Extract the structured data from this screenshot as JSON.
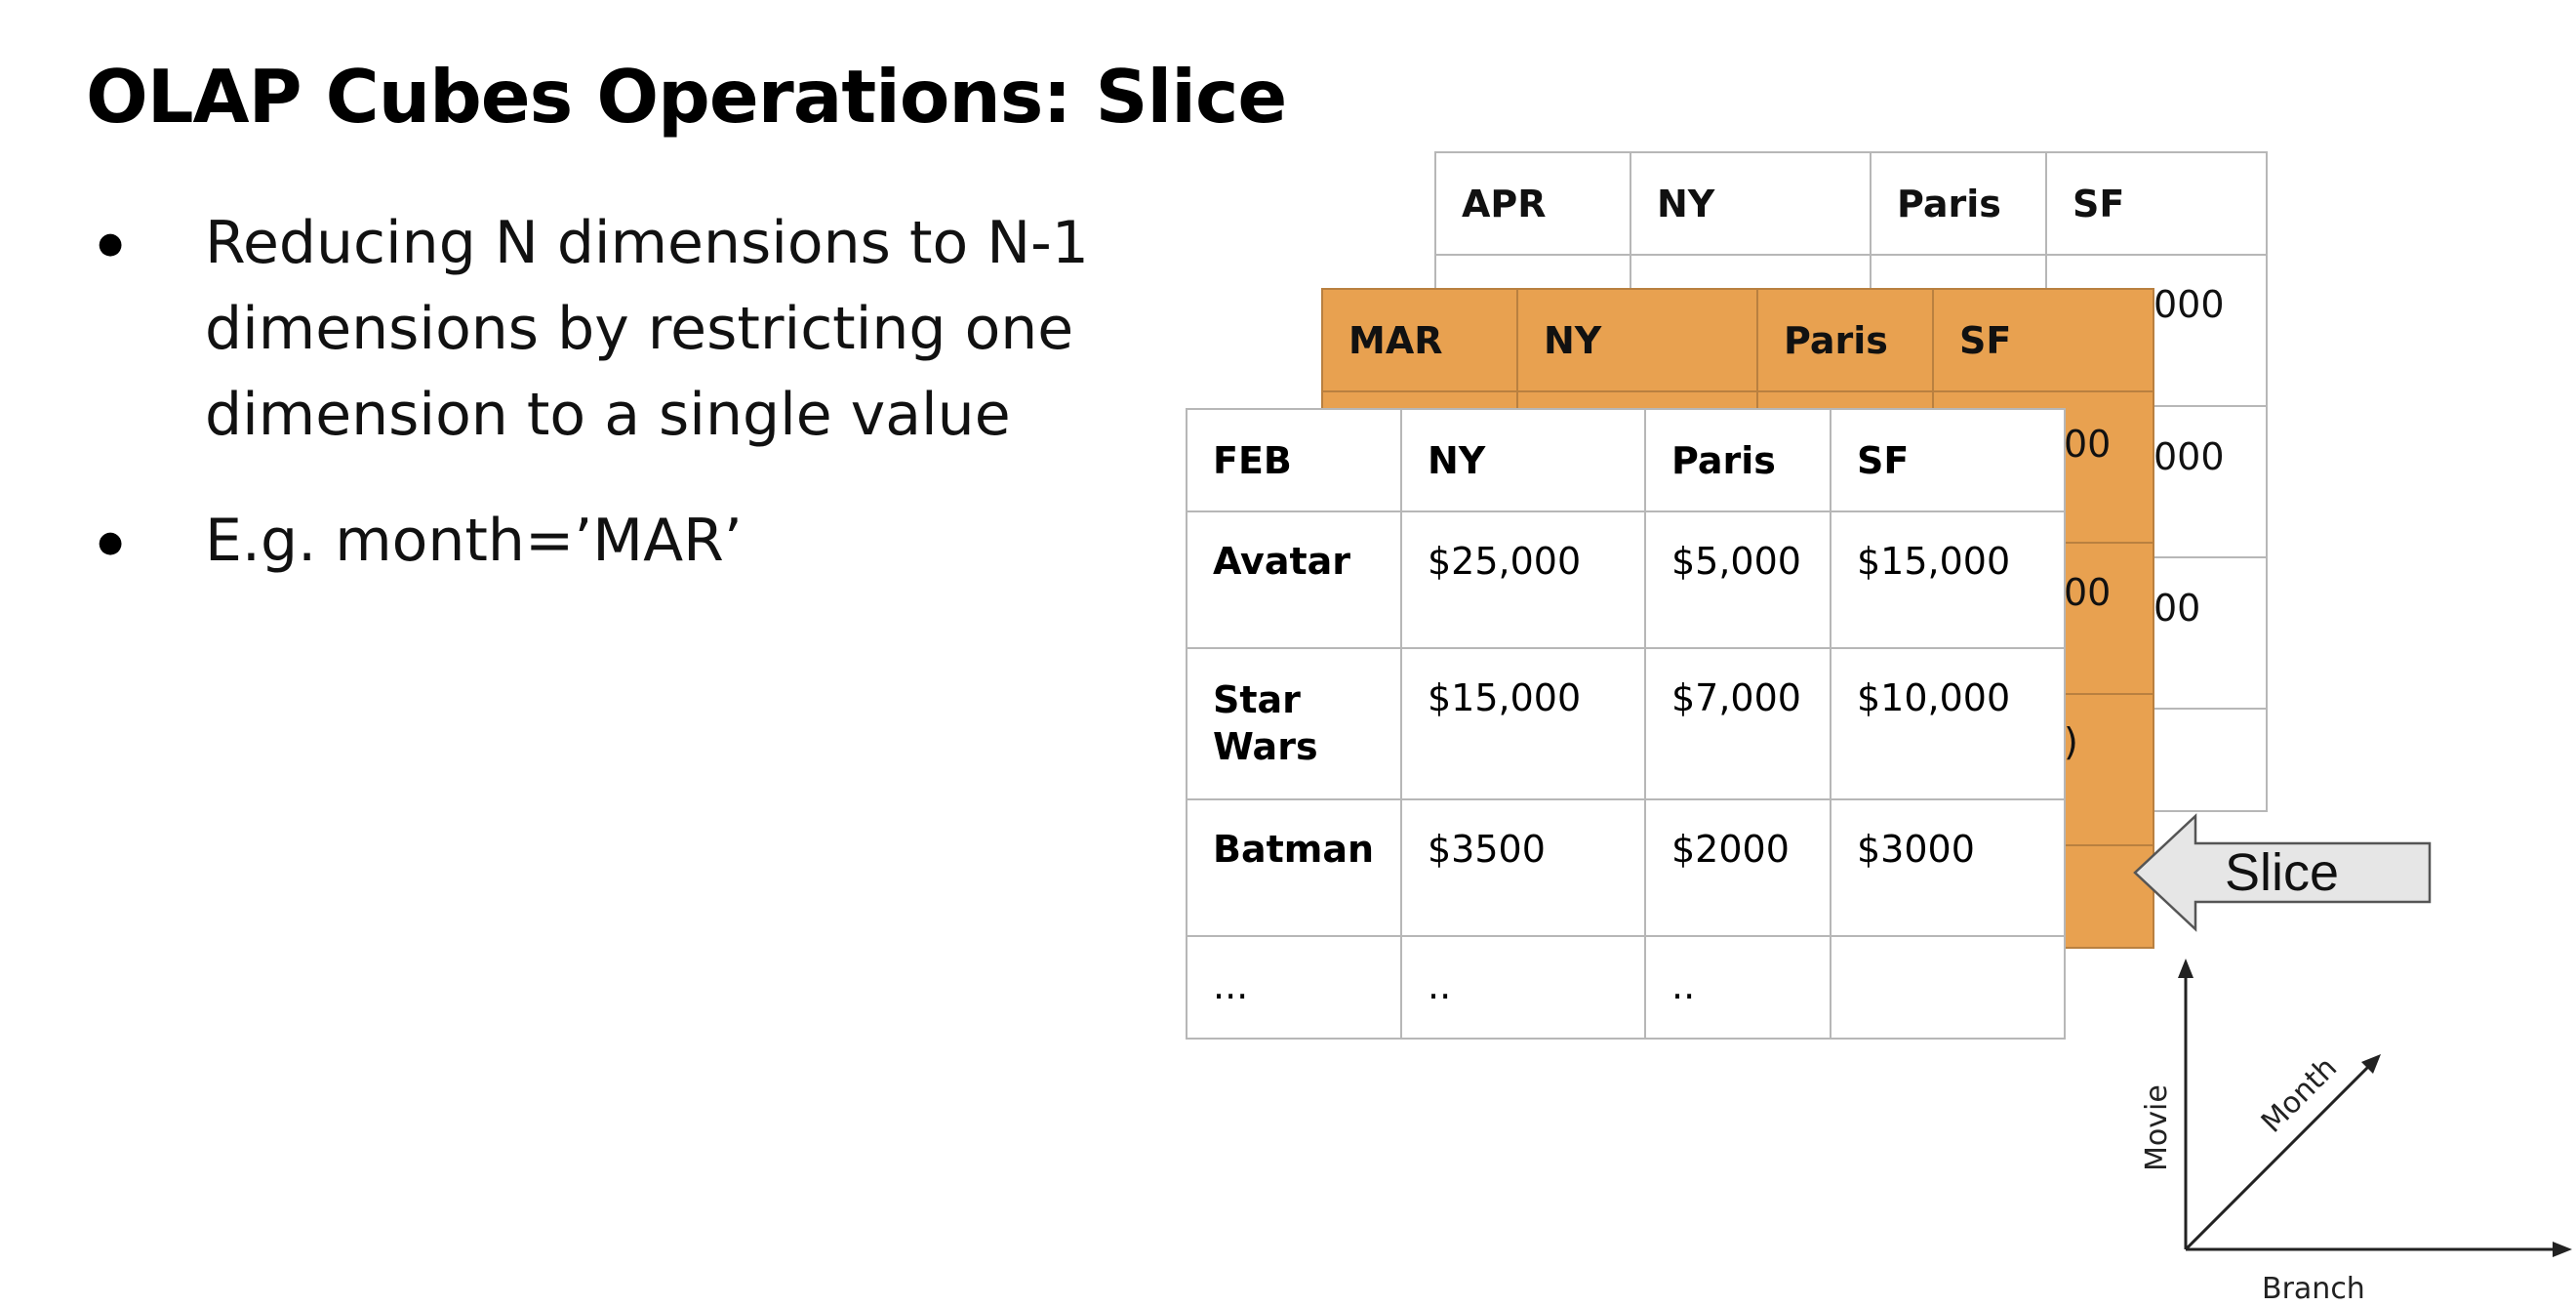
{
  "title": "OLAP Cubes Operations: Slice",
  "bullets": [
    {
      "lines": [
        "Reducing N dimensions to N-1",
        "dimensions by restricting one",
        "dimension to a single value"
      ]
    },
    {
      "lines": [
        "E.g. month=’MAR’"
      ]
    }
  ],
  "tables": {
    "apr": {
      "header": [
        "APR",
        "NY",
        "Paris",
        "SF"
      ],
      "visible_fragments": [
        "000",
        "000",
        "00"
      ]
    },
    "mar": {
      "header": [
        "MAR",
        "NY",
        "Paris",
        "SF"
      ],
      "visible_fragments": [
        "00",
        "00",
        ")"
      ]
    },
    "feb": {
      "header": [
        "FEB",
        "NY",
        "Paris",
        "SF"
      ],
      "rows": [
        [
          "Avatar",
          "$25,000",
          "$5,000",
          "$15,000"
        ],
        [
          "Star Wars",
          "$15,000",
          "$7,000",
          "$10,000"
        ],
        [
          "Batman",
          "$3500",
          "$2000",
          "$3000"
        ],
        [
          "...",
          "..",
          "..",
          ""
        ]
      ]
    }
  },
  "slice_label": "Slice",
  "axes": {
    "y": "Movie",
    "diagonal": "Month",
    "x": "Branch"
  },
  "colors": {
    "mar_fill": "#e8a150",
    "arrow_fill": "#e6e6e6",
    "grid": "#b7b7b7"
  }
}
